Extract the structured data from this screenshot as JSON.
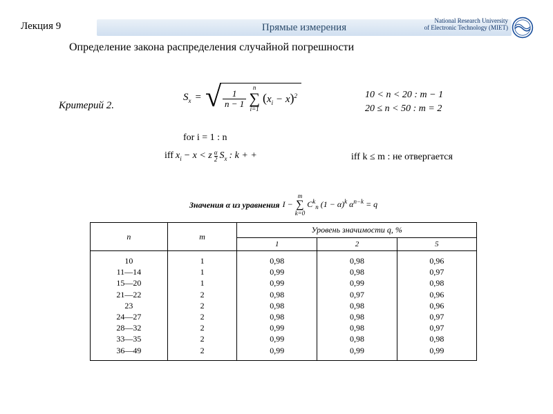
{
  "header": {
    "lecture": "Лекция 9",
    "title": "Прямые измерения",
    "uni_line1": "National Research University",
    "uni_line2": "of Electronic Technology (MIET)",
    "subtitle": "Определение закона распределения случайной погрешности",
    "logo_colors": {
      "ring": "#1a4f9c",
      "wave": "#1a4f9c",
      "bg": "#ffffff"
    },
    "bar_gradient": [
      "#eaf1f8",
      "#d0dff0"
    ]
  },
  "criterion": {
    "label": "Критерий 2.",
    "main_formula": {
      "lhs": "S",
      "lhs_sub": "x",
      "eq": "=",
      "frac_num": "1",
      "frac_den": "n − 1",
      "sum_top": "n",
      "sum_bot": "i=1",
      "term_open": "(",
      "term": "x",
      "term_sub_i": "i",
      "minus": " − ",
      "term_x": "x",
      "term_close": ")",
      "term_exp": "2",
      "note": "for i = 1 : n"
    },
    "cond1": "10 < n < 20 : m − 1",
    "cond2": "20 ≤ n < 50 : m = 2",
    "iff1": {
      "pre": "iff  ",
      "x": "x",
      "i": "i",
      "minus": " − x < z",
      "alpha_over_2_top": "α",
      "alpha_over_2_bot": "2",
      "S": "S",
      "Sx": "x",
      "tail": " : k + +"
    },
    "iff2": {
      "text": "iff  k ≤ m : ",
      "res": "не отвергается"
    }
  },
  "table": {
    "caption_bold": "Значения α из уравнения",
    "caption_formula": {
      "I": "I − ",
      "sum_top": "m",
      "sum_bot": "k=0",
      "body1": "C",
      "body1_sup": "k",
      "body1_sub": "n",
      "body2": " (1 − α)",
      "body2_sup": "k",
      "body3": "α",
      "body3_sup": "n−k",
      "eq": " = q"
    },
    "header_level": "Уровень значимости q, %",
    "col_n": "n",
    "col_m": "m",
    "q_cols": [
      "1",
      "2",
      "5"
    ],
    "rows_n": [
      "10",
      "11—14",
      "15—20",
      "21—22",
      "23",
      "24—27",
      "28—32",
      "33—35",
      "36—49"
    ],
    "rows_m": [
      "1",
      "1",
      "1",
      "2",
      "2",
      "2",
      "2",
      "2",
      "2"
    ],
    "rows_q1": [
      "0,98",
      "0,99",
      "0,99",
      "0,98",
      "0,98",
      "0,98",
      "0,99",
      "0,99",
      "0,99"
    ],
    "rows_q2": [
      "0,98",
      "0,98",
      "0,99",
      "0,97",
      "0,98",
      "0,98",
      "0,98",
      "0,98",
      "0,99"
    ],
    "rows_q5": [
      "0,96",
      "0,97",
      "0,98",
      "0,96",
      "0,96",
      "0,97",
      "0,97",
      "0,98",
      "0,99"
    ],
    "col_widths_pct": [
      20,
      18,
      20.7,
      20.7,
      20.6
    ],
    "border_color": "#000000",
    "font_size_pt": 12,
    "background": "#ffffff"
  }
}
